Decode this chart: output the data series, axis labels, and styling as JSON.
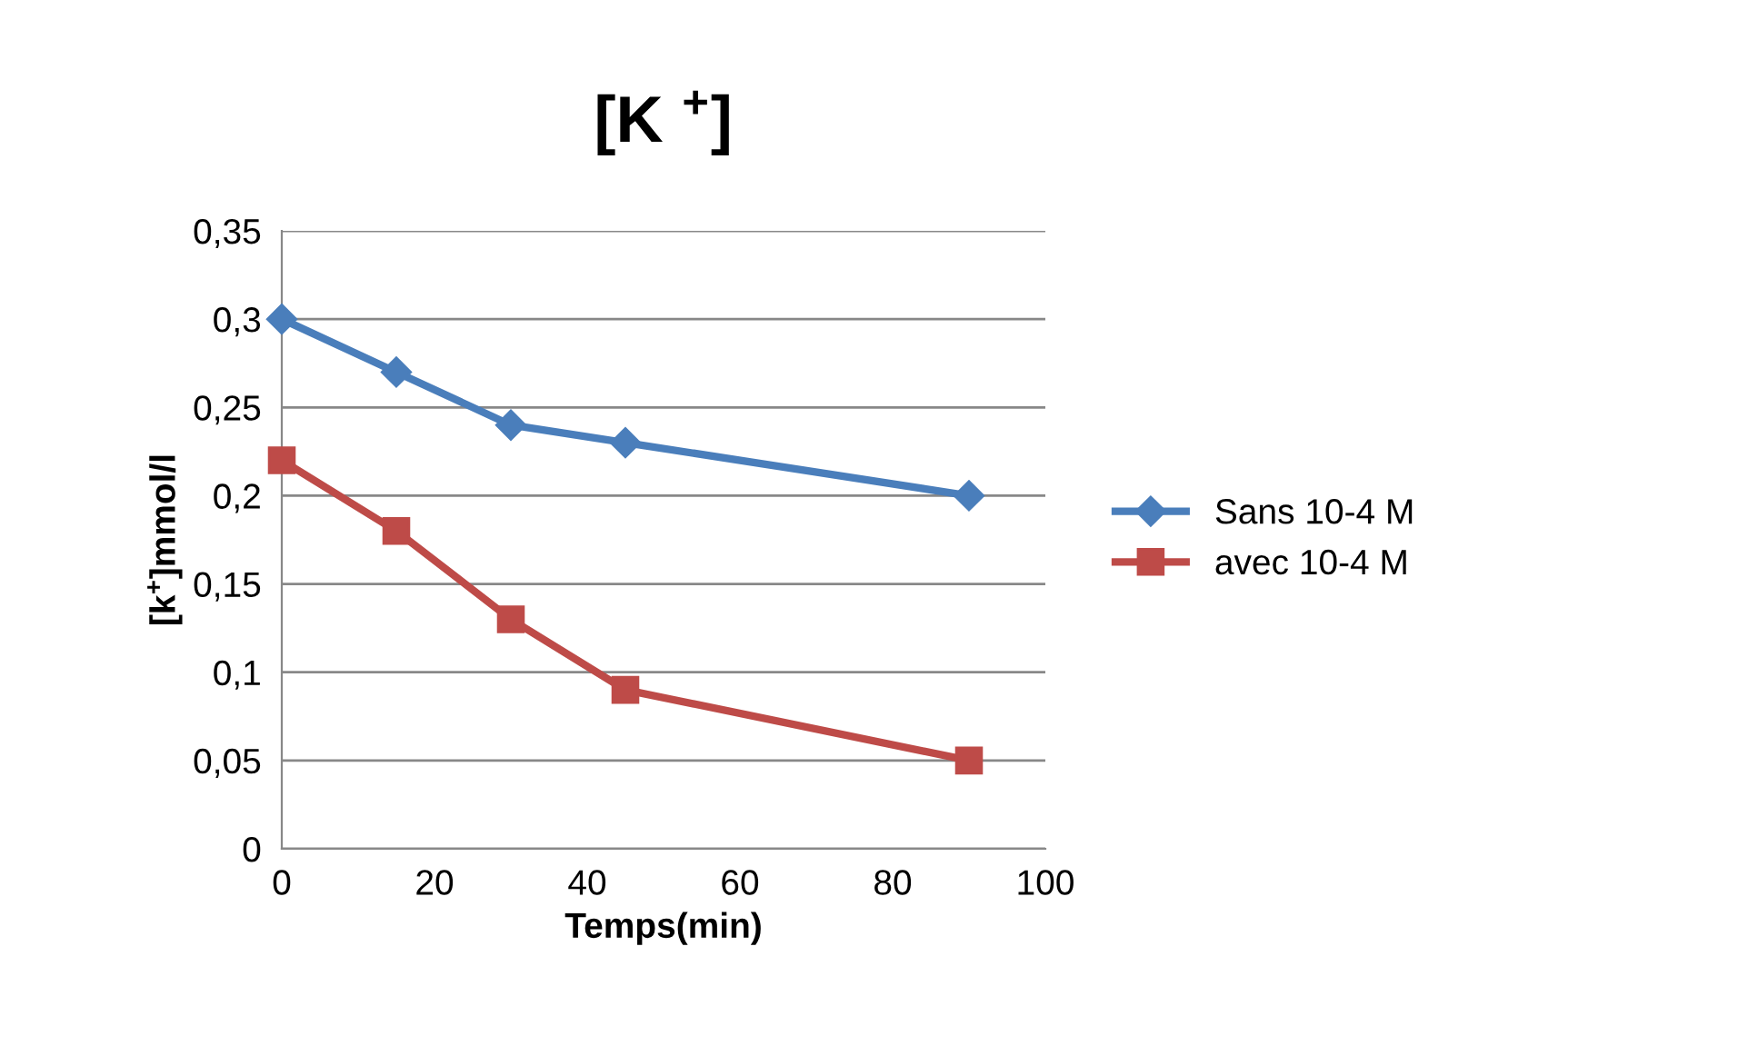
{
  "chart_data": {
    "type": "line",
    "title": "[K $^{+}$]",
    "xlabel": "Temps(min)",
    "ylabel": "[k$^{+}$]mmol/l",
    "x": [
      0,
      15,
      30,
      45,
      90
    ],
    "series": [
      {
        "name": "Sans 10-4 M",
        "color": "#4a7ebb",
        "marker": "diamond",
        "values": [
          0.3,
          0.27,
          0.24,
          0.23,
          0.2
        ]
      },
      {
        "name": "avec 10-4 M",
        "color": "#be4b48",
        "marker": "square",
        "values": [
          0.22,
          0.18,
          0.13,
          0.09,
          0.05
        ]
      }
    ],
    "xlim": [
      0,
      100
    ],
    "xticks": [
      0,
      20,
      40,
      60,
      80,
      100
    ],
    "ylim": [
      0,
      0.35
    ],
    "yticks": [
      {
        "value": 0,
        "label": "0"
      },
      {
        "value": 0.05,
        "label": "0,05"
      },
      {
        "value": 0.1,
        "label": "0,1"
      },
      {
        "value": 0.15,
        "label": "0,15"
      },
      {
        "value": 0.2,
        "label": "0,2"
      },
      {
        "value": 0.25,
        "label": "0,25"
      },
      {
        "value": 0.3,
        "label": "0,3"
      },
      {
        "value": 0.35,
        "label": "0,35"
      }
    ],
    "grid": "y",
    "legend": "right",
    "line_style": "solid"
  }
}
